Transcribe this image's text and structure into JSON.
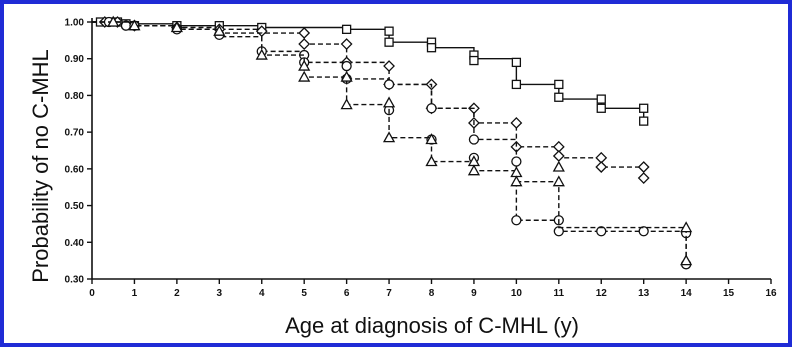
{
  "chart_data": {
    "type": "line",
    "subtype": "kaplan-meier-step",
    "title": "",
    "xlabel": "Age at diagnosis of C-MHL (y)",
    "ylabel": "Probability of no C-MHL",
    "xlim": [
      0,
      16
    ],
    "ylim": [
      0.3,
      1.0
    ],
    "x_ticks": [
      0,
      1,
      2,
      3,
      4,
      5,
      6,
      7,
      8,
      9,
      10,
      11,
      12,
      13,
      14,
      15,
      16
    ],
    "y_ticks": [
      0.3,
      0.4,
      0.5,
      0.6,
      0.7,
      0.8,
      0.9,
      1.0
    ],
    "y_tick_labels": [
      "0.30",
      "0.40",
      "0.50",
      "0.60",
      "0.70",
      "0.80",
      "0.90",
      "1.00"
    ],
    "grid": false,
    "legend": "none",
    "series": [
      {
        "marker": "square",
        "dash": "solid",
        "steps": [
          [
            0,
            1.0
          ],
          [
            0.9,
            0.995
          ],
          [
            2,
            0.99
          ],
          [
            4,
            0.985
          ],
          [
            6,
            0.98
          ],
          [
            7,
            0.945
          ],
          [
            8,
            0.93
          ],
          [
            9,
            0.9
          ],
          [
            10,
            0.83
          ],
          [
            11,
            0.79
          ],
          [
            12,
            0.765
          ],
          [
            13,
            0.725
          ]
        ],
        "markers": [
          [
            0.2,
            1.0
          ],
          [
            0.4,
            1.0
          ],
          [
            0.6,
            1.0
          ],
          [
            0.8,
            0.995
          ],
          [
            1,
            0.99
          ],
          [
            2,
            0.99
          ],
          [
            3,
            0.99
          ],
          [
            4,
            0.985
          ],
          [
            6,
            0.98
          ],
          [
            7,
            0.975
          ],
          [
            7,
            0.945
          ],
          [
            8,
            0.945
          ],
          [
            8,
            0.93
          ],
          [
            9,
            0.91
          ],
          [
            9,
            0.895
          ],
          [
            10,
            0.89
          ],
          [
            10,
            0.83
          ],
          [
            11,
            0.83
          ],
          [
            11,
            0.795
          ],
          [
            12,
            0.79
          ],
          [
            12,
            0.765
          ],
          [
            13,
            0.765
          ],
          [
            13,
            0.73
          ]
        ],
        "end": 13
      },
      {
        "marker": "diamond",
        "dash": "dashed",
        "steps": [
          [
            0,
            1.0
          ],
          [
            1,
            0.99
          ],
          [
            2,
            0.985
          ],
          [
            3,
            0.98
          ],
          [
            4,
            0.97
          ],
          [
            5,
            0.94
          ],
          [
            6,
            0.89
          ],
          [
            7,
            0.83
          ],
          [
            8,
            0.765
          ],
          [
            9,
            0.725
          ],
          [
            10,
            0.66
          ],
          [
            11,
            0.63
          ],
          [
            12,
            0.605
          ],
          [
            13,
            0.57
          ]
        ],
        "markers": [
          [
            0.3,
            1.0
          ],
          [
            0.6,
            1.0
          ],
          [
            1,
            0.99
          ],
          [
            2,
            0.985
          ],
          [
            3,
            0.98
          ],
          [
            4,
            0.975
          ],
          [
            5,
            0.97
          ],
          [
            5,
            0.94
          ],
          [
            6,
            0.94
          ],
          [
            6,
            0.89
          ],
          [
            7,
            0.88
          ],
          [
            7,
            0.83
          ],
          [
            8,
            0.83
          ],
          [
            8,
            0.765
          ],
          [
            9,
            0.765
          ],
          [
            9,
            0.725
          ],
          [
            10,
            0.725
          ],
          [
            10,
            0.66
          ],
          [
            11,
            0.66
          ],
          [
            11,
            0.635
          ],
          [
            12,
            0.63
          ],
          [
            12,
            0.605
          ],
          [
            13,
            0.605
          ],
          [
            13,
            0.575
          ]
        ],
        "end": 13
      },
      {
        "marker": "circle",
        "dash": "dashed",
        "steps": [
          [
            0,
            1.0
          ],
          [
            1,
            0.99
          ],
          [
            2,
            0.98
          ],
          [
            3,
            0.96
          ],
          [
            4,
            0.92
          ],
          [
            5,
            0.89
          ],
          [
            6,
            0.845
          ],
          [
            7,
            0.83
          ],
          [
            8,
            0.765
          ],
          [
            9,
            0.68
          ],
          [
            10,
            0.46
          ],
          [
            11,
            0.43
          ],
          [
            12,
            0.43
          ],
          [
            14,
            0.34
          ]
        ],
        "markers": [
          [
            0.4,
            1.0
          ],
          [
            0.8,
            0.99
          ],
          [
            1,
            0.99
          ],
          [
            2,
            0.98
          ],
          [
            3,
            0.965
          ],
          [
            4,
            0.92
          ],
          [
            5,
            0.91
          ],
          [
            5,
            0.89
          ],
          [
            6,
            0.88
          ],
          [
            6,
            0.845
          ],
          [
            7,
            0.83
          ],
          [
            7,
            0.76
          ],
          [
            8,
            0.765
          ],
          [
            8,
            0.68
          ],
          [
            9,
            0.68
          ],
          [
            9,
            0.63
          ],
          [
            10,
            0.62
          ],
          [
            10,
            0.46
          ],
          [
            11,
            0.46
          ],
          [
            11,
            0.43
          ],
          [
            12,
            0.43
          ],
          [
            13,
            0.43
          ],
          [
            14,
            0.425
          ],
          [
            14,
            0.34
          ]
        ],
        "end": 14
      },
      {
        "marker": "triangle",
        "dash": "dashed",
        "steps": [
          [
            0,
            1.0
          ],
          [
            1,
            0.99
          ],
          [
            2,
            0.98
          ],
          [
            3,
            0.97
          ],
          [
            4,
            0.91
          ],
          [
            5,
            0.85
          ],
          [
            6,
            0.775
          ],
          [
            7,
            0.685
          ],
          [
            8,
            0.62
          ],
          [
            9,
            0.595
          ],
          [
            10,
            0.565
          ],
          [
            11,
            0.44
          ],
          [
            14,
            0.35
          ]
        ],
        "markers": [
          [
            0.5,
            1.0
          ],
          [
            1,
            0.99
          ],
          [
            2,
            0.985
          ],
          [
            3,
            0.975
          ],
          [
            4,
            0.91
          ],
          [
            5,
            0.88
          ],
          [
            5,
            0.85
          ],
          [
            6,
            0.85
          ],
          [
            6,
            0.775
          ],
          [
            7,
            0.78
          ],
          [
            7,
            0.685
          ],
          [
            8,
            0.68
          ],
          [
            8,
            0.62
          ],
          [
            9,
            0.62
          ],
          [
            9,
            0.595
          ],
          [
            10,
            0.59
          ],
          [
            10,
            0.565
          ],
          [
            11,
            0.565
          ],
          [
            11,
            0.605
          ],
          [
            14,
            0.44
          ],
          [
            14,
            0.35
          ]
        ],
        "end": 14
      }
    ]
  }
}
